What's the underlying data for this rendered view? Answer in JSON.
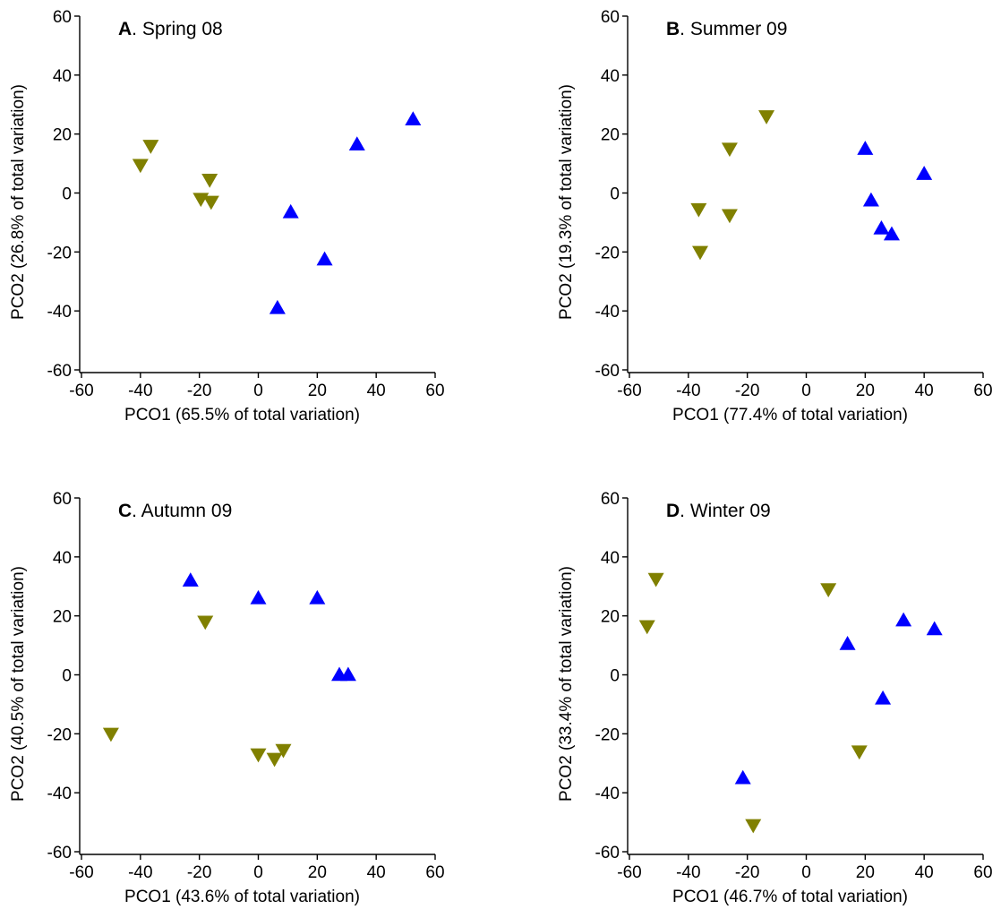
{
  "colors": {
    "up": "#0000FF",
    "down": "#808000",
    "axis": "#000000"
  },
  "chart_data": [
    {
      "type": "scatter",
      "panel_letter": "A",
      "panel_title": ". Spring 08",
      "xlabel": "PCO1 (65.5% of total variation)",
      "ylabel": "PCO2 (26.8% of total variation)",
      "xlim": [
        -60,
        60
      ],
      "ylim": [
        -60,
        60
      ],
      "xticks": [
        -60,
        -40,
        -20,
        0,
        20,
        40,
        60
      ],
      "yticks": [
        -60,
        -40,
        -20,
        0,
        20,
        40,
        60
      ],
      "series": [
        {
          "marker": "triangle-up",
          "color": "#0000FF",
          "points": [
            [
              52.5,
              25
            ],
            [
              33.5,
              16.5
            ],
            [
              11,
              -6.5
            ],
            [
              22.5,
              -22.5
            ],
            [
              6.5,
              -39
            ]
          ]
        },
        {
          "marker": "triangle-down",
          "color": "#808000",
          "points": [
            [
              -36.5,
              16
            ],
            [
              -40,
              9.5
            ],
            [
              -16.5,
              4.5
            ],
            [
              -19.5,
              -2
            ],
            [
              -16,
              -3
            ]
          ]
        }
      ]
    },
    {
      "type": "scatter",
      "panel_letter": "B",
      "panel_title": ". Summer 09",
      "xlabel": "PCO1 (77.4% of total variation)",
      "ylabel": "PCO2 (19.3% of total variation)",
      "xlim": [
        -60,
        60
      ],
      "ylim": [
        -60,
        60
      ],
      "xticks": [
        -60,
        -40,
        -20,
        0,
        20,
        40,
        60
      ],
      "yticks": [
        -60,
        -40,
        -20,
        0,
        20,
        40,
        60
      ],
      "series": [
        {
          "marker": "triangle-up",
          "color": "#0000FF",
          "points": [
            [
              20,
              15
            ],
            [
              40,
              6.5
            ],
            [
              22,
              -2.5
            ],
            [
              25.5,
              -12
            ],
            [
              29,
              -14
            ]
          ]
        },
        {
          "marker": "triangle-down",
          "color": "#808000",
          "points": [
            [
              -13.5,
              26
            ],
            [
              -26,
              15
            ],
            [
              -36.5,
              -5.5
            ],
            [
              -26,
              -7.5
            ],
            [
              -36,
              -20
            ]
          ]
        }
      ]
    },
    {
      "type": "scatter",
      "panel_letter": "C",
      "panel_title": ". Autumn 09",
      "xlabel": "PCO1 (43.6% of total variation)",
      "ylabel": "PCO2 (40.5% of total variation)",
      "xlim": [
        -60,
        60
      ],
      "ylim": [
        -60,
        60
      ],
      "xticks": [
        -60,
        -40,
        -20,
        0,
        20,
        40,
        60
      ],
      "yticks": [
        -60,
        -40,
        -20,
        0,
        20,
        40,
        60
      ],
      "series": [
        {
          "marker": "triangle-up",
          "color": "#0000FF",
          "points": [
            [
              -23,
              32
            ],
            [
              0,
              26
            ],
            [
              20,
              26
            ],
            [
              27.5,
              0
            ],
            [
              30.5,
              0
            ]
          ]
        },
        {
          "marker": "triangle-down",
          "color": "#808000",
          "points": [
            [
              -18,
              18
            ],
            [
              -50,
              -20
            ],
            [
              0,
              -27
            ],
            [
              5.5,
              -28.5
            ],
            [
              8.5,
              -25.5
            ]
          ]
        }
      ]
    },
    {
      "type": "scatter",
      "panel_letter": "D",
      "panel_title": ". Winter 09",
      "xlabel": "PCO1 (46.7% of total variation)",
      "ylabel": "PCO2 (33.4% of total variation)",
      "xlim": [
        -60,
        60
      ],
      "ylim": [
        -60,
        60
      ],
      "xticks": [
        -60,
        -40,
        -20,
        0,
        20,
        40,
        60
      ],
      "yticks": [
        -60,
        -40,
        -20,
        0,
        20,
        40,
        60
      ],
      "series": [
        {
          "marker": "triangle-up",
          "color": "#0000FF",
          "points": [
            [
              33,
              18.5
            ],
            [
              43.5,
              15.5
            ],
            [
              14,
              10.5
            ],
            [
              26,
              -8
            ],
            [
              -21.5,
              -35
            ]
          ]
        },
        {
          "marker": "triangle-down",
          "color": "#808000",
          "points": [
            [
              -51,
              32.5
            ],
            [
              -54,
              16.5
            ],
            [
              7.5,
              29
            ],
            [
              18,
              -26
            ],
            [
              -18,
              -51
            ]
          ]
        }
      ]
    }
  ]
}
